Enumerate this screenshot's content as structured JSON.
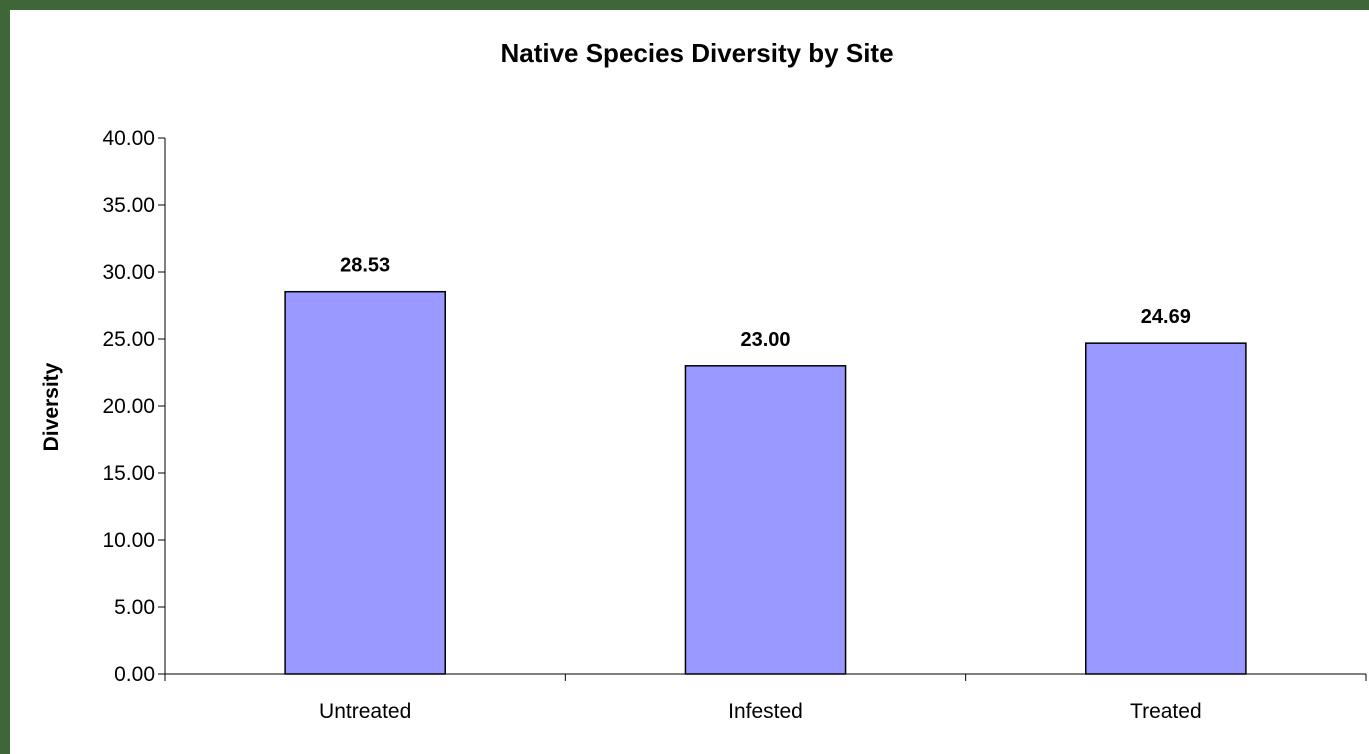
{
  "chart_data": {
    "type": "bar",
    "title": "Native Species Diversity by Site",
    "xlabel": "",
    "ylabel": "Diversity",
    "categories": [
      "Untreated",
      "Infested",
      "Treated"
    ],
    "values": [
      28.53,
      23.0,
      24.69
    ],
    "value_labels": [
      "28.53",
      "23.00",
      "24.69"
    ],
    "ylim": [
      0,
      40
    ],
    "yticks": [
      "0.00",
      "5.00",
      "10.00",
      "15.00",
      "20.00",
      "25.00",
      "30.00",
      "35.00",
      "40.00"
    ],
    "grid": false,
    "legend": "none",
    "bar_color": "#9999ff",
    "bar_border_color": "#000000",
    "frame_color": "#3e6636"
  }
}
